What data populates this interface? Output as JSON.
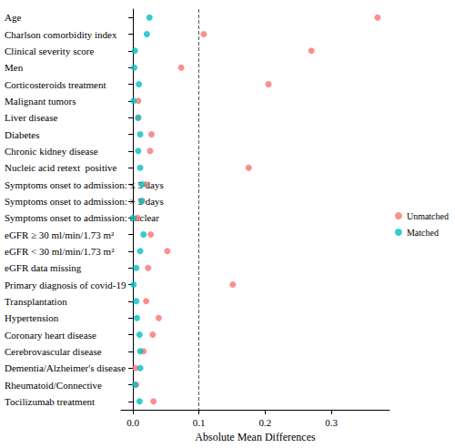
{
  "chart_data": {
    "type": "scatter",
    "xlabel": "Absolute Mean Differences",
    "categories": [
      "Age",
      "Charlson comorbidity index",
      "Clinical severity score",
      "Men",
      "Corticosteroids treatment",
      "Malignant tumors",
      "Liver disease",
      "Diabetes",
      "Chronic kidney disease",
      "Nucleic acid retext  positive",
      "Symptoms onset to admission: ≤ 5 days",
      "Symptoms onset to admission: > 5 days",
      "Symptoms onset to admission: unclear",
      "eGFR ≥ 30 ml/min/1.73 m²",
      "eGFR < 30 ml/min/1.73 m²",
      "eGFR data missing",
      "Primary diagnosis of covid-19",
      "Transplantation",
      "Hypertension",
      "Coronary heart disease",
      "Cerebrovascular disease",
      "Dementia/Alzheimer's disease",
      "Rheumatoid/Connective",
      "Tocilizumab treatment"
    ],
    "series": [
      {
        "name": "Unmatched",
        "color": "#F8766D",
        "marker": "circle",
        "values": [
          0.37,
          0.107,
          0.27,
          0.073,
          0.205,
          0.008,
          0.008,
          0.028,
          0.026,
          0.175,
          0.02,
          0.014,
          0.007,
          0.027,
          0.052,
          0.023,
          0.151,
          0.02,
          0.039,
          0.03,
          0.016,
          0.004,
          0.005,
          0.031
        ]
      },
      {
        "name": "Matched",
        "color": "#00BFC4",
        "marker": "circle",
        "values": [
          0.025,
          0.021,
          0.003,
          0.002,
          0.009,
          0.001,
          0.008,
          0.011,
          0.008,
          0.011,
          0.014,
          0.013,
          0.0,
          0.016,
          0.011,
          0.005,
          0.001,
          0.005,
          0.006,
          0.01,
          0.011,
          0.011,
          0.003,
          0.01
        ]
      }
    ],
    "reference_lines": [
      {
        "value": 0,
        "line_style": "solid"
      },
      {
        "value": 0.1,
        "line_style": "dashed"
      }
    ],
    "xlim": [
      -0.018,
      0.388
    ],
    "xticks": [
      {
        "value": 0,
        "label": "0.0"
      },
      0.1,
      0.2,
      0.3
    ],
    "grid": false,
    "legend": "right"
  }
}
